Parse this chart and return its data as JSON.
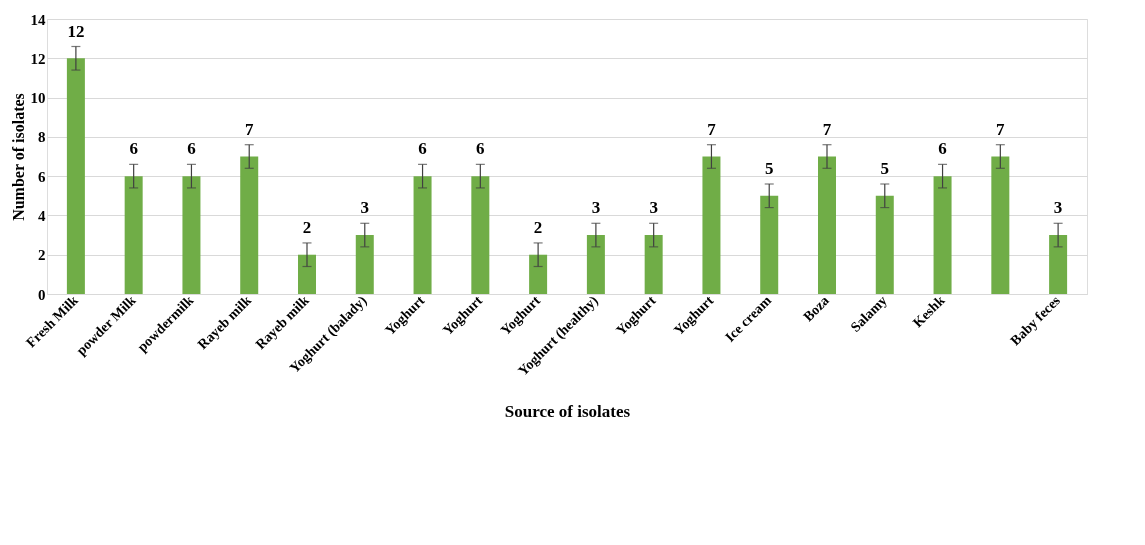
{
  "chart_data": {
    "type": "bar",
    "xlabel": "Source of isolates",
    "ylabel": "Number of isolates",
    "categories": [
      "Fresh Milk",
      "powder Milk",
      "powdermilk",
      "Rayeb milk",
      "Rayeb milk",
      "Yoghurt  (balady)",
      "Yoghurt",
      "Yoghurt",
      "Yoghurt",
      "Yoghurt (healthy)",
      "Yoghurt",
      "Yoghurt",
      "Ice cream",
      "Boza",
      "Salamy",
      "Keshk",
      null,
      "Baby feces"
    ],
    "values": [
      12,
      6,
      6,
      7,
      2,
      3,
      6,
      6,
      2,
      3,
      3,
      7,
      5,
      7,
      5,
      6,
      7,
      3
    ],
    "errors": [
      0.6,
      0.6,
      0.6,
      0.6,
      0.6,
      0.6,
      0.6,
      0.6,
      0.6,
      0.6,
      0.6,
      0.6,
      0.6,
      0.6,
      0.6,
      0.6,
      0.6,
      0.6
    ],
    "color": "#70ad47",
    "ylim": [
      0,
      14
    ],
    "yticks": [
      0,
      2,
      4,
      6,
      8,
      10,
      12,
      14
    ],
    "grid": "y",
    "data_labels": true
  }
}
